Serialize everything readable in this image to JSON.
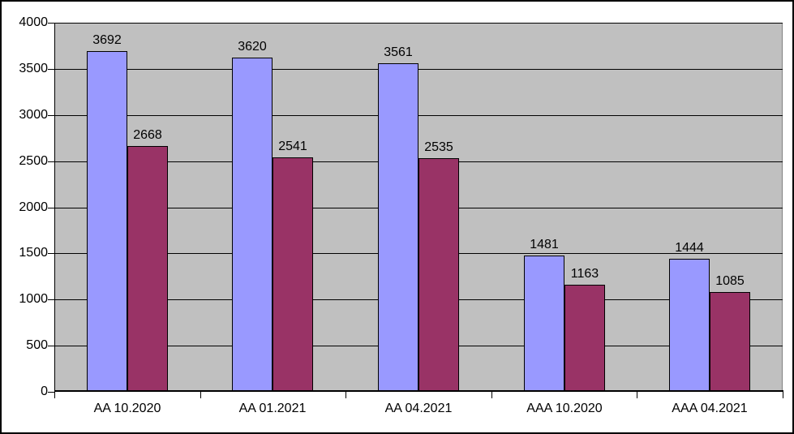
{
  "chart_data": {
    "type": "bar",
    "title": "",
    "xlabel": "",
    "ylabel": "",
    "categories": [
      "AA 10.2020",
      "AA 01.2021",
      "AA 04.2021",
      "AAA 10.2020",
      "AAA 04.2021"
    ],
    "series": [
      {
        "color": "#9999FF",
        "values": [
          3692,
          3620,
          3561,
          1481,
          1444
        ]
      },
      {
        "color": "#993366",
        "values": [
          2668,
          2541,
          2535,
          1163,
          1085
        ]
      }
    ],
    "ylim": [
      0,
      4000
    ],
    "ytick_step": 500,
    "ytick_labels": [
      "0",
      "500",
      "1000",
      "1500",
      "2000",
      "2500",
      "3000",
      "3500",
      "4000"
    ],
    "grid": true,
    "legend_position": "none",
    "data_labels": true
  },
  "style": {
    "chart_background": "#FFFFFF",
    "frame_border_color": "#000000",
    "plot_background": "#C0C0C0",
    "plot_border_color": "#808080",
    "gridline_color": "#000000",
    "axis_color": "#000000",
    "tick_color": "#000000",
    "bar_border_color": "#000000",
    "text_color": "#000000"
  }
}
